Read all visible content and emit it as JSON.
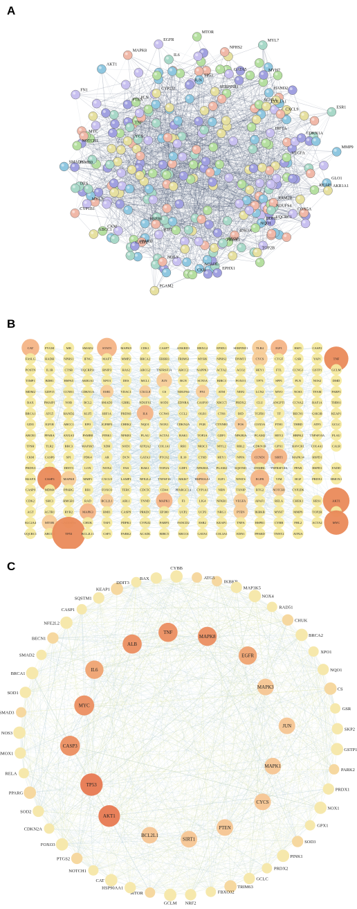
{
  "panels": [
    {
      "label": "A",
      "nodes": [
        "GLO1",
        "KEAP1",
        "AKR1A1",
        "RRM2B",
        "COX5A",
        "NDUFS4",
        "UQCRC1",
        "BDH1",
        "NQO1",
        "TOP2B",
        "IDH3A",
        "PRDX3",
        "ACO2",
        "EPHX1",
        "ACADL",
        "CKB",
        "PGAM2",
        "NOL3",
        "BTG",
        "CASP2",
        "PPARD",
        "HSPB6",
        "CKM",
        "ABCC1",
        "CYP1B1",
        "MYL3",
        "DES",
        "PSMB9",
        "SMAD3",
        "NOTCH1",
        "CYCS",
        "MYC",
        "FN1",
        "TNF",
        "PTEN",
        "AKT1",
        "PLN",
        "CYP2J2",
        "MAPK8",
        "EGFR",
        "IL6",
        "JUN",
        "TP53",
        "MTOR",
        "SERPINE1",
        "NPHS2",
        "GATA5",
        "MYL7",
        "MYH7",
        "HAND2",
        "SCN5A",
        "COL1A1",
        "CXCL9",
        "HIF1A",
        "ESR1",
        "CDKN1A",
        "MMP9",
        "VEGFA"
      ]
    },
    {
      "label": "B",
      "rows": [
        [
          "CAT",
          "PYGM",
          "MB",
          "SMAD2",
          "STAT3",
          "MAPK9",
          "CDK1",
          "CASP7",
          "ANKRD1",
          "HBXG2",
          "EPHX1",
          "SERPINE1",
          "TLR4",
          "IGF1",
          "HSF1",
          "CASP2"
        ],
        [
          "FASLG",
          "HADH",
          "NPHS1",
          "IFNG",
          "MAFT",
          "MMP2",
          "BRCA2",
          "ERBB3",
          "TRIM63",
          "MYH6",
          "NPHS2",
          "DNMT1",
          "CYCS",
          "CTGF",
          "GSR",
          "YAP1",
          "TNF"
        ],
        [
          "POSTN",
          "IL1B",
          "CTSB",
          "UQCRFS1",
          "BNIP3",
          "HAS2",
          "ABCG2",
          "TNFRSF1A",
          "ABCC2",
          "NAPPK1",
          "ACTA2",
          "ACO2",
          "HEY1",
          "FTL",
          "CCNG1",
          "GSTP1",
          "GCLM"
        ],
        [
          "TIMP1",
          "BDH1",
          "HSPA5",
          "AKR1A1",
          "XPO1",
          "DES",
          "MCL1",
          "JUN",
          "BGN",
          "SCN5A",
          "BIRC3",
          "FOXO1",
          "TP73",
          "SPP1",
          "PLN",
          "NOS2",
          "DMD"
        ],
        [
          "MDM2",
          "GDF15",
          "CCNE1",
          "CDKN1A",
          "ESR1",
          "VDAC1",
          "CXCL8",
          "CS",
          "NDUFS4",
          "FN1",
          "ATM",
          "NEF2",
          "LCN2",
          "MYO",
          "NOS3",
          "TFAM",
          "PARP1"
        ],
        [
          "BAX",
          "PMAIP1",
          "NOB",
          "BCL2",
          "SMAD3",
          "GBRL",
          "NDUFS1",
          "SOD3",
          "EDNRA",
          "CASP10",
          "XRCC5",
          "PRDX2",
          "CLU",
          "ANGPT1",
          "CCNA2",
          "RAF1A",
          "THBS1"
        ],
        [
          "BRCA1",
          "ATG5",
          "HAND2",
          "KLF5",
          "HIF1A",
          "PRDX6",
          "IL6",
          "CCN41",
          "CCL2",
          "OLR1",
          "CTSS",
          "BID",
          "TGFB1",
          "TF",
          "BECN1",
          "GSK3B",
          "KEAP1"
        ],
        [
          "GDI1",
          "IGF1R",
          "ABCC1",
          "EPO",
          "IGFBP3",
          "CHEK2",
          "NQO1",
          "NOX1",
          "CDKN2A",
          "PGR",
          "CTNNB1",
          "FOS",
          "COX5A",
          "FTH1",
          "THBD",
          "ATF3",
          "GCLC"
        ],
        [
          "ABCB1",
          "PPARA",
          "ANXA5",
          "PSMB8",
          "PINK1",
          "NFKB1",
          "PLAU",
          "ACTA1",
          "BAK1",
          "TOP2A",
          "GDF1",
          "NFKBIA",
          "PGAM2",
          "HEY2",
          "HBPK2",
          "TNFSF10A",
          "PLAU"
        ],
        [
          "TPSH",
          "TLR2",
          "BBC3",
          "MAP3K5",
          "XDH",
          "SOD1",
          "ATP2A2",
          "COL1A1",
          "RB1",
          "NR3C1",
          "MYL2",
          "RBL2",
          "CDKN1B",
          "GPX1",
          "HAVCR1",
          "COL4A1",
          "CALR"
        ],
        [
          "CKM",
          "CASP6",
          "SP1",
          "PDK4",
          "AR",
          "DCN",
          "GATA3",
          "PTGS2",
          "IL10",
          "CTSD",
          "HEY1",
          "NPPA",
          "CCND1",
          "SIRT1",
          "MAPK14",
          "HSPD1"
        ],
        [
          "PRDX3",
          "NPPB",
          "DDIT3",
          "LOX",
          "NOX4",
          "FAS",
          "BAK1",
          "TOP2A",
          "GDF1",
          "NFKBIA",
          "PGAM2",
          "SQSTM1",
          "DNMBL",
          "TNFRSF10A",
          "PPAR",
          "HSPD1",
          "FADD"
        ],
        [
          "H2AFX",
          "CASP3",
          "MAPK8",
          "MMP1",
          "CXCL9",
          "LAMP1",
          "NFE2L2",
          "TNFSF10",
          "MKI67",
          "HSP90AA1",
          "E2F1",
          "NFATS",
          "EGFR",
          "VIM",
          "HGF",
          "PRDX1",
          "HMOX1"
        ],
        [
          "CASP9",
          "MDM4",
          "PPARG",
          "RB1",
          "FOXO3",
          "TERC",
          "CDC5C",
          "CD44",
          "PPARGC1A",
          "CYP1A1",
          "NBN",
          "TXNIP",
          "BTG2",
          "NOTCH1",
          "CYP2D6"
        ],
        [
          "CDK2",
          "SHC1",
          "HMGB1",
          "RAD",
          "BCL2L1",
          "ABL1",
          "TNND",
          "MAPK1",
          "F3",
          "LIG4",
          "NFKB1",
          "VEGFA",
          "APAF1",
          "RELA",
          "CHEK1",
          "HES1",
          "AKT1"
        ],
        [
          "AGT",
          "AGTR1",
          "RYR2",
          "MAPK3",
          "BMI1",
          "CASP9",
          "PRKDC",
          "EP300",
          "UCP2",
          "UCP3",
          "NRG1",
          "PTEN",
          "IKBKB",
          "MYH7",
          "MMP9",
          "TOP2B",
          "CYP2J2"
        ],
        [
          "SLC2A4",
          "MTOR",
          "GADD45A",
          "CHUK",
          "TAF1",
          "PDPK1",
          "CYP2J2",
          "FABP3",
          "FANCD2",
          "ESR2",
          "KEAP1",
          "TNFA",
          "HSPB1",
          "CYBB",
          "FHL2",
          "ACTA2",
          "MYC"
        ],
        [
          "UQCRC1",
          "ABCG1",
          "TP53",
          "BCL2L11",
          "CSF3",
          "PARK2",
          "ACADL",
          "BIRC5",
          "XRCC6",
          "GATA1",
          "COL3A1",
          "EDN1",
          "PPARD",
          "TNNT2",
          "ATP2A"
        ]
      ]
    },
    {
      "label": "C",
      "inner_nodes": [
        "MAPK8",
        "EGFR",
        "MAPK3",
        "JUN",
        "MAPK1",
        "CYCS",
        "PTEN",
        "SIRT1",
        "BCL2L1",
        "AKT1",
        "TP53",
        "CASP3",
        "MYC",
        "IL6",
        "ALB",
        "TNF"
      ],
      "outer_nodes": [
        "IKBKB",
        "MAP3K5",
        "NOX4",
        "RAD51",
        "CHUK",
        "BRCA2",
        "XPO1",
        "NQO1",
        "CS",
        "GSR",
        "SKP2",
        "GSTP1",
        "PARK2",
        "PRDX1",
        "NOX1",
        "GPX1",
        "SOD3",
        "PINK1",
        "PRDX2",
        "GCLC",
        "TRIM63",
        "FBXO32",
        "NRF2",
        "GCLM",
        "MTOR",
        "HSP90AA1",
        "CAT",
        "NOTCH1",
        "PTGS2",
        "FOXO3",
        "CDKN2A",
        "SOD2",
        "PPARG",
        "RELA",
        "HMOX1",
        "NOS3",
        "SMAD3",
        "SOD1",
        "BRCA1",
        "SMAD2",
        "BECN1",
        "NFE2L2",
        "CASP1",
        "SQSTM1",
        "KEAP1",
        "DDIT3",
        "BAX",
        "CYBB",
        "ATG5"
      ]
    }
  ]
}
